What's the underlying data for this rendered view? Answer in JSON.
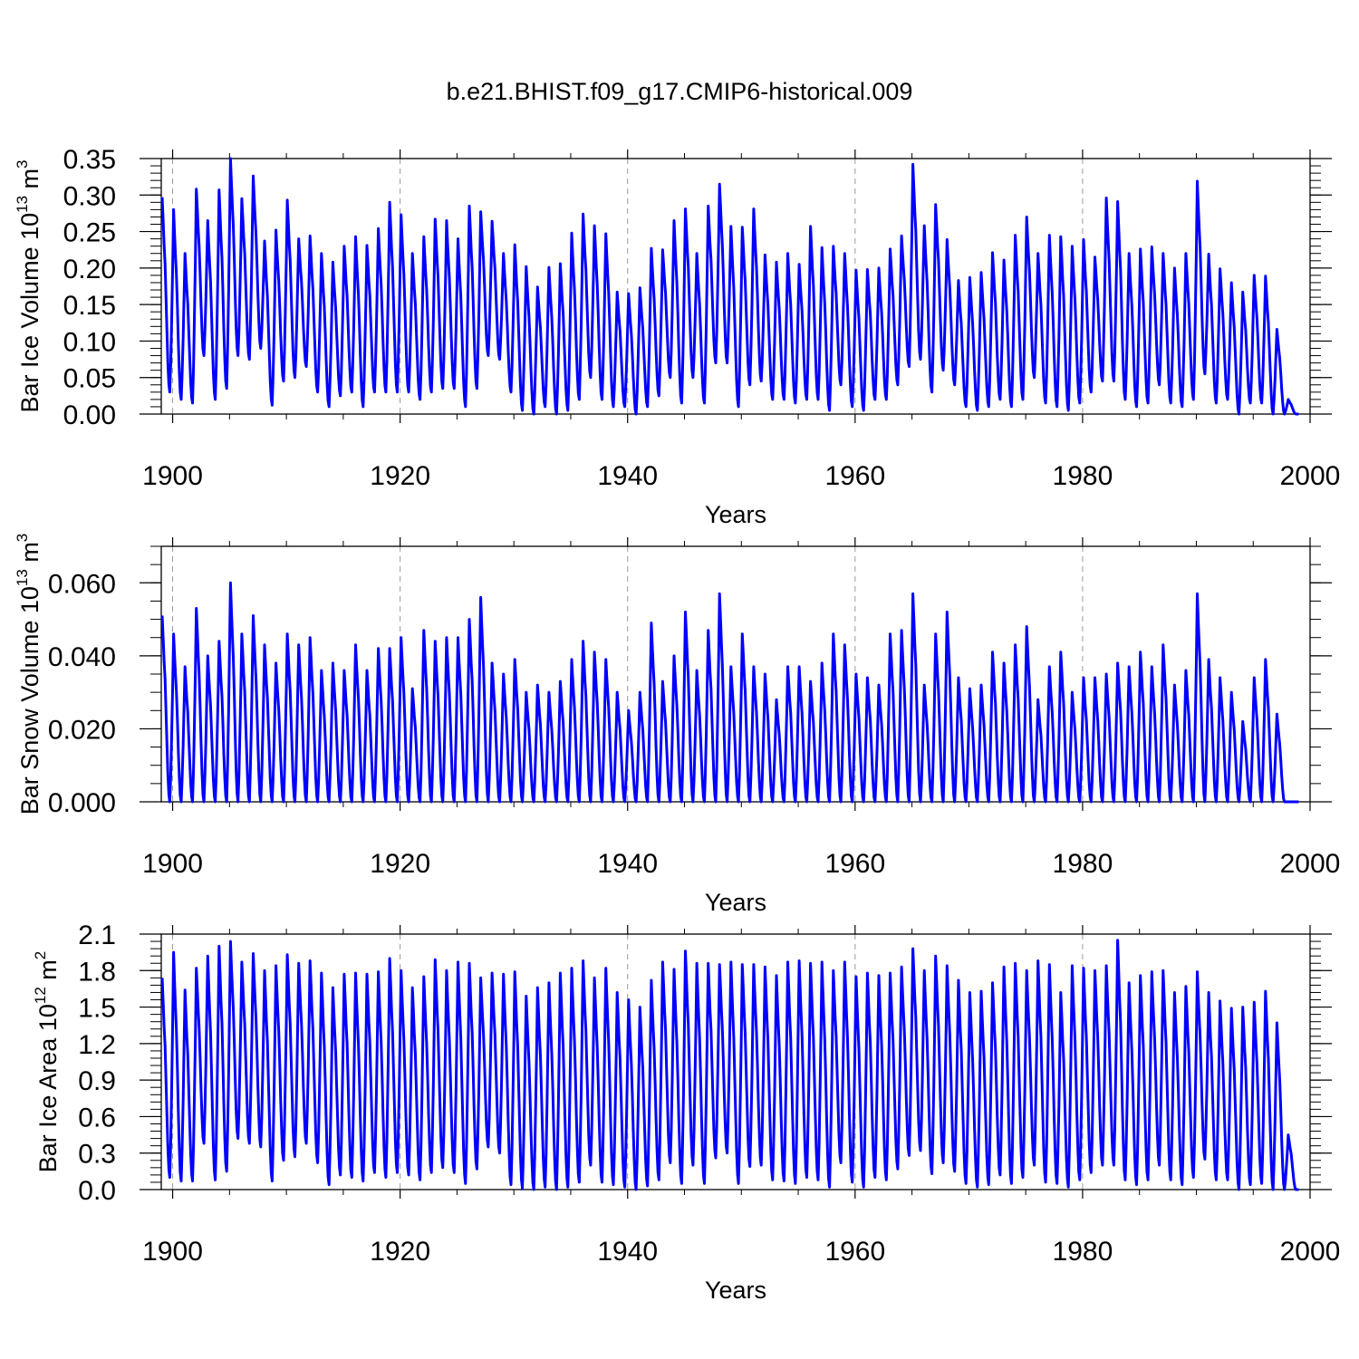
{
  "title": "b.e21.BHIST.f09_g17.CMIP6-historical.009",
  "chart_data": [
    {
      "type": "line",
      "ylabel": "Bar Ice Volume",
      "yunit_base": "10",
      "yunit_exp": "13",
      "yunit_suffix": "m",
      "yunit_suffix_exp": "3",
      "xlabel": "Years",
      "xlim": [
        1899,
        2000
      ],
      "ylim": [
        0.0,
        0.35
      ],
      "x_ticks": [
        "1900",
        "1920",
        "1940",
        "1960",
        "1980",
        "2000"
      ],
      "y_ticks": [
        "0.00",
        "0.05",
        "0.10",
        "0.15",
        "0.20",
        "0.25",
        "0.30",
        "0.35"
      ],
      "line_color": "#0000ff",
      "series": [
        {
          "name": "Bar Ice Volume",
          "x_start": 1899.083,
          "step_years": 1,
          "annual_max": [
            0.297,
            0.28,
            0.22,
            0.308,
            0.265,
            0.307,
            0.35,
            0.295,
            0.326,
            0.237,
            0.252,
            0.293,
            0.24,
            0.244,
            0.22,
            0.208,
            0.23,
            0.243,
            0.231,
            0.254,
            0.29,
            0.273,
            0.22,
            0.243,
            0.267,
            0.265,
            0.24,
            0.285,
            0.277,
            0.264,
            0.22,
            0.232,
            0.202,
            0.174,
            0.201,
            0.206,
            0.248,
            0.274,
            0.258,
            0.247,
            0.167,
            0.165,
            0.173,
            0.227,
            0.225,
            0.265,
            0.281,
            0.22,
            0.285,
            0.315,
            0.257,
            0.256,
            0.281,
            0.218,
            0.208,
            0.22,
            0.205,
            0.257,
            0.228,
            0.23,
            0.22,
            0.197,
            0.198,
            0.2,
            0.226,
            0.244,
            0.342,
            0.258,
            0.287,
            0.239,
            0.183,
            0.187,
            0.194,
            0.221,
            0.211,
            0.245,
            0.27,
            0.22,
            0.245,
            0.243,
            0.23,
            0.239,
            0.215,
            0.296,
            0.291,
            0.22,
            0.226,
            0.229,
            0.22,
            0.2,
            0.22,
            0.319,
            0.219,
            0.199,
            0.18,
            0.167,
            0.19,
            0.189,
            0.116,
            0.02
          ],
          "annual_min": [
            0.03,
            0.02,
            0.015,
            0.08,
            0.02,
            0.035,
            0.08,
            0.075,
            0.09,
            0.012,
            0.045,
            0.05,
            0.065,
            0.03,
            0.01,
            0.025,
            0.03,
            0.01,
            0.03,
            0.03,
            0.03,
            0.03,
            0.02,
            0.03,
            0.035,
            0.035,
            0.01,
            0.035,
            0.08,
            0.075,
            0.03,
            0.005,
            0.0,
            0.01,
            0.0,
            0.005,
            0.02,
            0.05,
            0.02,
            0.01,
            0.01,
            0.0,
            0.01,
            0.025,
            0.05,
            0.015,
            0.05,
            0.015,
            0.07,
            0.07,
            0.01,
            0.04,
            0.045,
            0.02,
            0.02,
            0.015,
            0.02,
            0.02,
            0.005,
            0.04,
            0.01,
            0.005,
            0.02,
            0.02,
            0.04,
            0.065,
            0.075,
            0.03,
            0.06,
            0.04,
            0.01,
            0.005,
            0.01,
            0.02,
            0.01,
            0.02,
            0.05,
            0.015,
            0.01,
            0.005,
            0.015,
            0.03,
            0.045,
            0.045,
            0.02,
            0.01,
            0.015,
            0.04,
            0.015,
            0.01,
            0.02,
            0.055,
            0.015,
            0.02,
            0.0,
            0.015,
            0.015,
            0.0,
            0.0,
            0.0
          ]
        }
      ]
    },
    {
      "type": "line",
      "ylabel": "Bar Snow Volume",
      "yunit_base": "10",
      "yunit_exp": "13",
      "yunit_suffix": "m",
      "yunit_suffix_exp": "3",
      "xlabel": "Years",
      "xlim": [
        1899,
        2000
      ],
      "ylim": [
        0.0,
        0.07
      ],
      "x_ticks": [
        "1900",
        "1920",
        "1940",
        "1960",
        "1980",
        "2000"
      ],
      "y_ticks": [
        "0.000",
        "0.020",
        "0.040",
        "0.060"
      ],
      "line_color": "#0000ff",
      "series": [
        {
          "name": "Bar Snow Volume",
          "x_start": 1899.083,
          "step_years": 1,
          "annual_max": [
            0.051,
            0.046,
            0.037,
            0.053,
            0.04,
            0.044,
            0.06,
            0.046,
            0.051,
            0.043,
            0.038,
            0.046,
            0.043,
            0.045,
            0.036,
            0.038,
            0.036,
            0.043,
            0.036,
            0.042,
            0.042,
            0.045,
            0.031,
            0.047,
            0.044,
            0.045,
            0.045,
            0.05,
            0.056,
            0.038,
            0.035,
            0.039,
            0.03,
            0.032,
            0.03,
            0.033,
            0.039,
            0.044,
            0.041,
            0.039,
            0.03,
            0.025,
            0.03,
            0.049,
            0.033,
            0.04,
            0.052,
            0.036,
            0.047,
            0.057,
            0.037,
            0.046,
            0.037,
            0.035,
            0.028,
            0.037,
            0.037,
            0.033,
            0.038,
            0.046,
            0.043,
            0.035,
            0.034,
            0.032,
            0.046,
            0.047,
            0.057,
            0.032,
            0.046,
            0.052,
            0.034,
            0.031,
            0.032,
            0.041,
            0.038,
            0.043,
            0.048,
            0.028,
            0.037,
            0.041,
            0.03,
            0.034,
            0.034,
            0.035,
            0.038,
            0.037,
            0.041,
            0.037,
            0.043,
            0.032,
            0.036,
            0.057,
            0.039,
            0.034,
            0.03,
            0.022,
            0.034,
            0.039,
            0.024,
            0.0
          ],
          "annual_min": [
            0.0,
            0.0,
            0.0,
            0.0,
            0.0,
            0.0,
            0.0,
            0.0,
            0.0,
            0.0,
            0.0,
            0.0,
            0.0,
            0.0,
            0.0,
            0.0,
            0.0,
            0.0,
            0.0,
            0.0,
            0.0,
            0.0,
            0.0,
            0.0,
            0.0,
            0.0,
            0.0,
            0.0,
            0.0,
            0.0,
            0.0,
            0.0,
            0.0,
            0.0,
            0.0,
            0.0,
            0.0,
            0.0,
            0.0,
            0.0,
            0.0,
            0.0,
            0.0,
            0.0,
            0.0,
            0.0,
            0.0,
            0.0,
            0.0,
            0.0,
            0.0,
            0.0,
            0.0,
            0.0,
            0.0,
            0.0,
            0.0,
            0.0,
            0.0,
            0.0,
            0.0,
            0.0,
            0.0,
            0.0,
            0.0,
            0.0,
            0.0,
            0.0,
            0.0,
            0.0,
            0.0,
            0.0,
            0.0,
            0.0,
            0.0,
            0.0,
            0.0,
            0.0,
            0.0,
            0.0,
            0.0,
            0.0,
            0.0,
            0.0,
            0.0,
            0.0,
            0.0,
            0.0,
            0.0,
            0.0,
            0.0,
            0.0,
            0.0,
            0.0,
            0.0,
            0.0,
            0.0,
            0.0,
            0.0,
            0.0
          ]
        }
      ]
    },
    {
      "type": "line",
      "ylabel": "Bar Ice Area",
      "yunit_base": "10",
      "yunit_exp": "12",
      "yunit_suffix": "m",
      "yunit_suffix_exp": "2",
      "xlabel": "Years",
      "xlim": [
        1899,
        2000
      ],
      "ylim": [
        0.0,
        2.1
      ],
      "x_ticks": [
        "1900",
        "1920",
        "1940",
        "1960",
        "1980",
        "2000"
      ],
      "y_ticks": [
        "0.0",
        "0.3",
        "0.6",
        "0.9",
        "1.2",
        "1.5",
        "1.8",
        "2.1"
      ],
      "line_color": "#0000ff",
      "series": [
        {
          "name": "Bar Ice Area",
          "x_start": 1899.083,
          "step_years": 1,
          "annual_max": [
            1.74,
            1.95,
            1.64,
            1.82,
            1.92,
            2.0,
            2.04,
            1.87,
            1.94,
            1.8,
            1.84,
            1.93,
            1.86,
            1.88,
            1.78,
            1.66,
            1.77,
            1.78,
            1.77,
            1.79,
            1.9,
            1.8,
            1.66,
            1.75,
            1.89,
            1.8,
            1.87,
            1.86,
            1.74,
            1.78,
            1.77,
            1.79,
            1.59,
            1.66,
            1.7,
            1.78,
            1.82,
            1.88,
            1.74,
            1.82,
            1.62,
            1.56,
            1.5,
            1.72,
            1.87,
            1.81,
            1.96,
            1.86,
            1.86,
            1.85,
            1.87,
            1.85,
            1.85,
            1.83,
            1.76,
            1.87,
            1.88,
            1.86,
            1.87,
            1.8,
            1.87,
            1.75,
            1.78,
            1.76,
            1.78,
            1.83,
            1.98,
            1.8,
            1.92,
            1.84,
            1.72,
            1.62,
            1.63,
            1.7,
            1.83,
            1.86,
            1.8,
            1.88,
            1.85,
            1.62,
            1.84,
            1.82,
            1.8,
            1.84,
            2.05,
            1.7,
            1.76,
            1.79,
            1.8,
            1.62,
            1.67,
            1.79,
            1.62,
            1.55,
            1.49,
            1.5,
            1.54,
            1.63,
            1.37,
            0.45
          ],
          "annual_min": [
            0.1,
            0.07,
            0.07,
            0.38,
            0.08,
            0.15,
            0.42,
            0.38,
            0.35,
            0.07,
            0.24,
            0.27,
            0.38,
            0.22,
            0.04,
            0.12,
            0.1,
            0.07,
            0.14,
            0.1,
            0.14,
            0.12,
            0.08,
            0.14,
            0.18,
            0.14,
            0.05,
            0.17,
            0.35,
            0.3,
            0.04,
            0.01,
            0.0,
            0.02,
            0.0,
            0.02,
            0.06,
            0.2,
            0.06,
            0.04,
            0.02,
            0.0,
            0.03,
            0.08,
            0.22,
            0.05,
            0.2,
            0.05,
            0.26,
            0.3,
            0.05,
            0.19,
            0.2,
            0.08,
            0.07,
            0.05,
            0.1,
            0.08,
            0.02,
            0.22,
            0.06,
            0.02,
            0.1,
            0.08,
            0.17,
            0.28,
            0.32,
            0.13,
            0.22,
            0.15,
            0.05,
            0.02,
            0.04,
            0.12,
            0.05,
            0.1,
            0.2,
            0.06,
            0.05,
            0.02,
            0.08,
            0.14,
            0.2,
            0.2,
            0.08,
            0.04,
            0.08,
            0.2,
            0.08,
            0.04,
            0.1,
            0.25,
            0.08,
            0.08,
            0.0,
            0.04,
            0.05,
            0.0,
            0.0,
            0.0
          ]
        }
      ]
    }
  ]
}
